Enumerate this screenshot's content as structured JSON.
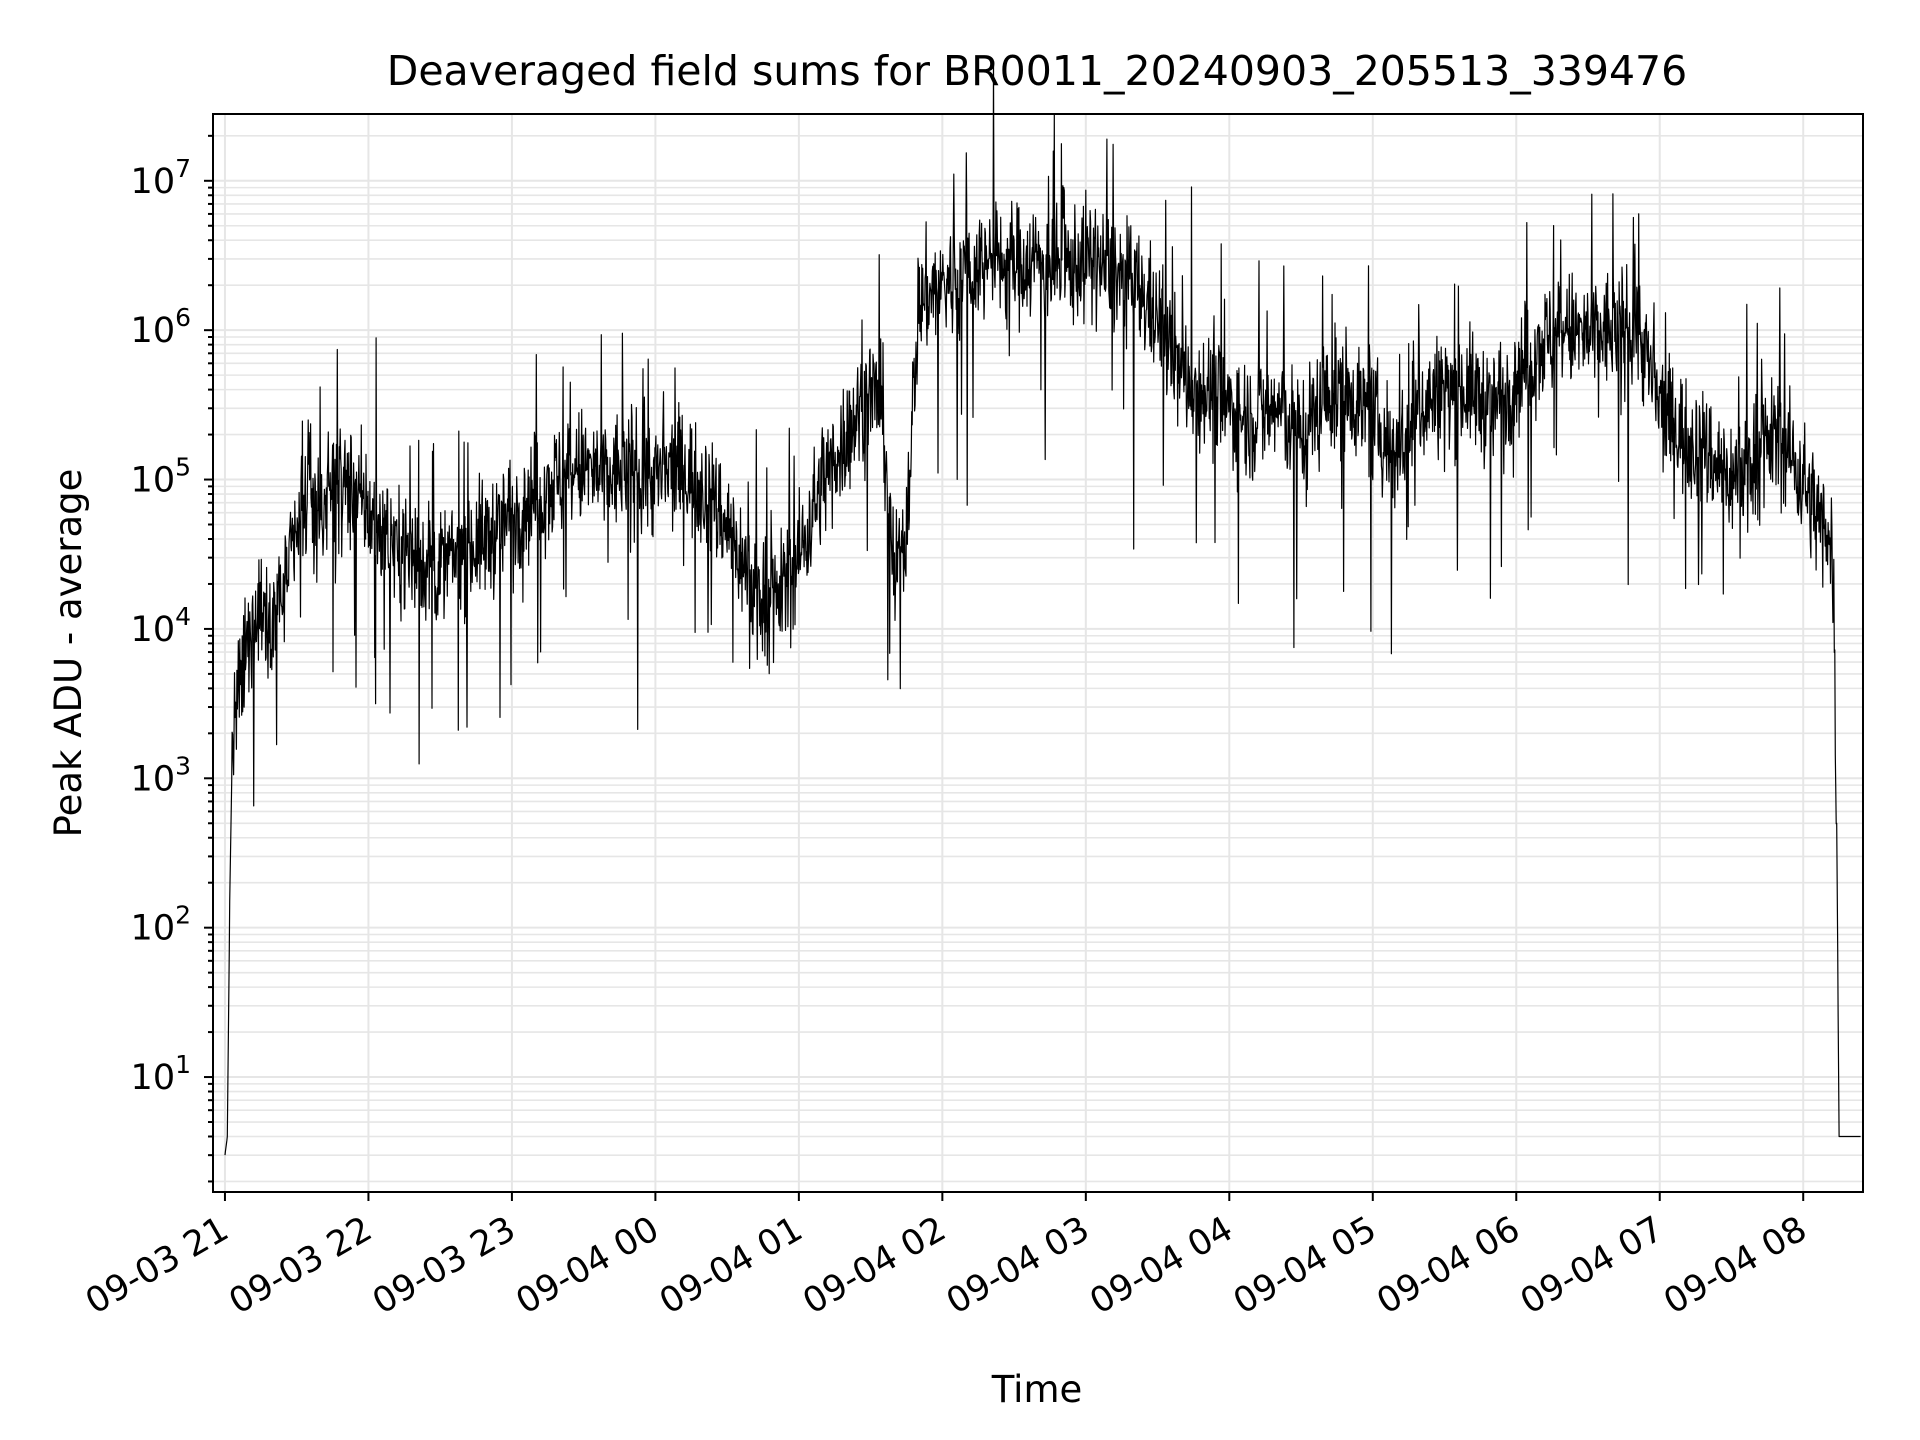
{
  "chart_data": {
    "type": "line",
    "title": "Deaveraged field sums for BR0011_20240903_205513_339476",
    "xlabel": "Time",
    "ylabel": "Peak ADU - average",
    "yscale": "log",
    "grid": true,
    "legend": "none",
    "line_color": "#000000",
    "grid_color": "#e6e6e6",
    "xlim": [
      "09-03 20:55",
      "09-04 08:25"
    ],
    "ylim": [
      1.7,
      28000000
    ],
    "x_ticks": [
      "09-03 21",
      "09-03 22",
      "09-03 23",
      "09-04 00",
      "09-04 01",
      "09-04 02",
      "09-04 03",
      "09-04 04",
      "09-04 05",
      "09-04 06",
      "09-04 07",
      "09-04 08"
    ],
    "y_ticks": [
      {
        "base": "10",
        "exp": "1",
        "value": 10
      },
      {
        "base": "10",
        "exp": "2",
        "value": 100
      },
      {
        "base": "10",
        "exp": "3",
        "value": 1000
      },
      {
        "base": "10",
        "exp": "4",
        "value": 10000
      },
      {
        "base": "10",
        "exp": "5",
        "value": 100000
      },
      {
        "base": "10",
        "exp": "6",
        "value": 1000000
      },
      {
        "base": "10",
        "exp": "7",
        "value": 10000000
      }
    ],
    "series": [
      {
        "x": [
          "09-03 21:00",
          "09-03 21:01",
          "09-03 21:02",
          "09-03 21:03",
          "09-03 21:05",
          "09-03 21:10",
          "09-03 21:15",
          "09-03 21:20",
          "09-03 21:25",
          "09-03 21:30",
          "09-03 21:35",
          "09-03 21:40",
          "09-03 21:45",
          "09-03 21:50",
          "09-03 21:55",
          "09-03 22:00",
          "09-03 22:10",
          "09-03 22:20",
          "09-03 22:30",
          "09-03 22:40",
          "09-03 22:50",
          "09-03 23:00",
          "09-03 23:10",
          "09-03 23:20",
          "09-03 23:30",
          "09-03 23:40",
          "09-03 23:50",
          "09-04 00:00",
          "09-04 00:10",
          "09-04 00:20",
          "09-04 00:30",
          "09-04 00:40",
          "09-04 00:50",
          "09-04 01:00",
          "09-04 01:10",
          "09-04 01:20",
          "09-04 01:30",
          "09-04 01:35",
          "09-04 01:40",
          "09-04 01:45",
          "09-04 01:50",
          "09-04 01:55",
          "09-04 02:00",
          "09-04 02:10",
          "09-04 02:20",
          "09-04 02:30",
          "09-04 02:40",
          "09-04 02:50",
          "09-04 03:00",
          "09-04 03:10",
          "09-04 03:20",
          "09-04 03:30",
          "09-04 03:40",
          "09-04 03:50",
          "09-04 04:00",
          "09-04 04:10",
          "09-04 04:20",
          "09-04 04:30",
          "09-04 04:40",
          "09-04 04:50",
          "09-04 05:00",
          "09-04 05:10",
          "09-04 05:20",
          "09-04 05:30",
          "09-04 05:40",
          "09-04 05:50",
          "09-04 06:00",
          "09-04 06:10",
          "09-04 06:20",
          "09-04 06:30",
          "09-04 06:40",
          "09-04 06:50",
          "09-04 07:00",
          "09-04 07:10",
          "09-04 07:20",
          "09-04 07:30",
          "09-04 07:40",
          "09-04 07:50",
          "09-04 08:00",
          "09-04 08:05",
          "09-04 08:10",
          "09-04 08:12",
          "09-04 08:13",
          "09-04 08:14",
          "09-04 08:15",
          "09-04 08:17",
          "09-04 08:20",
          "09-04 08:24"
        ],
        "y": [
          3,
          4,
          150,
          1500,
          3000,
          8000,
          15000,
          12000,
          20000,
          40000,
          80000,
          60000,
          100000,
          90000,
          80000,
          60000,
          40000,
          30000,
          25000,
          35000,
          40000,
          60000,
          80000,
          100000,
          120000,
          100000,
          130000,
          100000,
          120000,
          90000,
          50000,
          20000,
          15000,
          30000,
          100000,
          200000,
          400000,
          300000,
          20000,
          50000,
          1500000,
          1800000,
          2000000,
          2500000,
          3000000,
          2800000,
          3000000,
          2500000,
          3000000,
          2500000,
          2000000,
          1200000,
          500000,
          400000,
          300000,
          250000,
          300000,
          200000,
          350000,
          400000,
          250000,
          150000,
          300000,
          400000,
          400000,
          300000,
          500000,
          800000,
          1000000,
          900000,
          1000000,
          1200000,
          300000,
          200000,
          150000,
          100000,
          150000,
          200000,
          100000,
          60000,
          50000,
          40000,
          10000,
          500,
          4,
          4,
          4,
          4
        ]
      }
    ]
  }
}
